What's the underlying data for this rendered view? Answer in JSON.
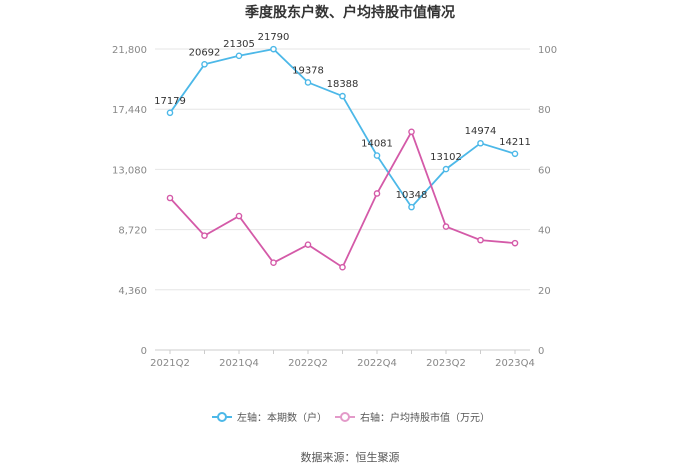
{
  "chart_data": {
    "type": "line",
    "title": "季度股东户数、户均持股市值情况",
    "categories": [
      "2021Q2",
      "2021Q3",
      "2021Q4",
      "2022Q1",
      "2022Q2",
      "2022Q3",
      "2022Q4",
      "2023Q1",
      "2023Q2",
      "2023Q3",
      "2023Q4"
    ],
    "x_tick_labels": [
      "2021Q2",
      "2021Q4",
      "2022Q2",
      "2022Q4",
      "2023Q2",
      "2023Q4"
    ],
    "y_left": {
      "ticks": [
        "0",
        "4,360",
        "8,720",
        "13,080",
        "17,440",
        "21,800"
      ],
      "ylim": [
        0,
        21800
      ]
    },
    "y_right": {
      "ticks": [
        "0",
        "20",
        "40",
        "60",
        "80",
        "100"
      ],
      "ylim": [
        0,
        100
      ]
    },
    "series": [
      {
        "name": "左轴：本期数（户）",
        "axis": "left",
        "color": "#4cb8e8",
        "values": [
          17179,
          20692,
          21305,
          21790,
          19378,
          18388,
          14081,
          10348,
          13102,
          14974,
          14211
        ],
        "labels": [
          "17179",
          "20692",
          "21305",
          "21790",
          "19378",
          "18388",
          "14081",
          "10348",
          "13102",
          "14974",
          "14211"
        ]
      },
      {
        "name": "右轴：户均持股市值（万元）",
        "axis": "right",
        "color": "#d45aa8",
        "values": [
          50.5,
          38.0,
          44.5,
          29.0,
          35.0,
          27.5,
          52.0,
          72.5,
          41.0,
          36.5,
          35.5
        ]
      }
    ],
    "grid": true,
    "legend_position": "bottom",
    "source": "数据来源：恒生聚源"
  }
}
